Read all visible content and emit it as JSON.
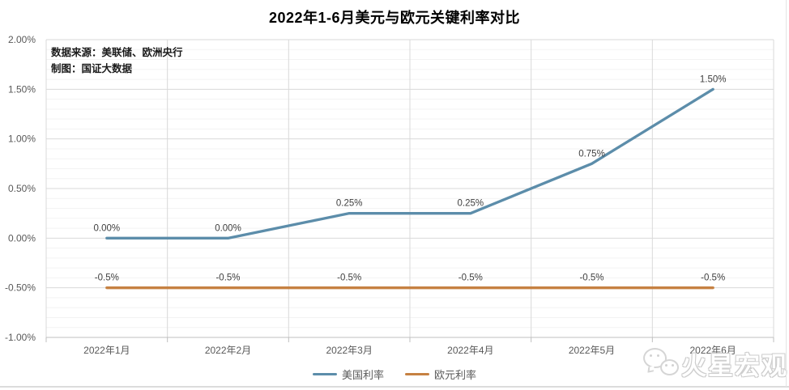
{
  "title": "2022年1-6月美元与欧元关键利率对比",
  "annotation": {
    "line1": "数据来源：美联储、欧洲央行",
    "line2": "制图：国证大数据"
  },
  "watermark": {
    "text": "火星宏观",
    "icon": "wechat-icon"
  },
  "chart_data": {
    "type": "line",
    "title": "2022年1-6月美元与欧元关键利率对比",
    "categories": [
      "2022年1月",
      "2022年2月",
      "2022年3月",
      "2022年4月",
      "2022年5月",
      "2022年6月"
    ],
    "series": [
      {
        "name": "美国利率",
        "color": "#5C8DAA",
        "values": [
          0.0,
          0.0,
          0.25,
          0.25,
          0.75,
          1.5
        ],
        "labels": [
          "0.00%",
          "0.00%",
          "0.25%",
          "0.25%",
          "0.75%",
          "1.50%"
        ]
      },
      {
        "name": "欧元利率",
        "color": "#C68142",
        "values": [
          -0.5,
          -0.5,
          -0.5,
          -0.5,
          -0.5,
          -0.5
        ],
        "labels": [
          "-0.5%",
          "-0.5%",
          "-0.5%",
          "-0.5%",
          "-0.5%",
          "-0.5%"
        ]
      }
    ],
    "xlabel": "",
    "ylabel": "",
    "ylim": [
      -1.0,
      2.0
    ],
    "yticks": {
      "values": [
        2.0,
        1.5,
        1.0,
        0.5,
        0.0,
        -0.5,
        -1.0
      ],
      "labels": [
        "2.00%",
        "1.50%",
        "1.00%",
        "0.50%",
        "0.00%",
        "-0.50%",
        "-1.00%"
      ]
    },
    "grid": {
      "major": true,
      "minor": true,
      "major_step": 0.5,
      "minor_step": 0.1
    },
    "legend_position": "bottom",
    "colors": {
      "major_grid": "#d9d9d9",
      "minor_grid": "#f3f3f3",
      "axis_line": "#bfbfbf",
      "tick_label": "#595959",
      "data_label": "#404040"
    }
  }
}
